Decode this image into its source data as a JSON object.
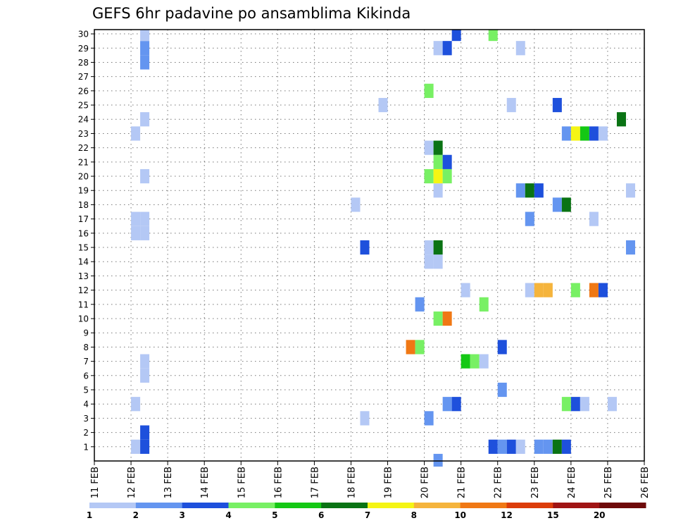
{
  "chart_data": {
    "type": "heatmap",
    "title": "GEFS 6hr padavine po ansamblima Kikinda",
    "xlabel": "",
    "ylabel": "",
    "x_ticks": [
      "11 FEB",
      "12 FEB",
      "13 FEB",
      "14 FEB",
      "15 FEB",
      "16 FEB",
      "17 FEB",
      "18 FEB",
      "19 FEB",
      "20 FEB",
      "21 FEB",
      "22 FEB",
      "23 FEB",
      "24 FEB",
      "25 FEB",
      "26 FEB"
    ],
    "y_ticks": [
      "1",
      "2",
      "3",
      "4",
      "5",
      "6",
      "7",
      "8",
      "9",
      "10",
      "11",
      "12",
      "13",
      "14",
      "15",
      "16",
      "17",
      "18",
      "19",
      "20",
      "21",
      "22",
      "23",
      "24",
      "25",
      "26",
      "27",
      "28",
      "29",
      "30"
    ],
    "xlim": [
      0,
      15
    ],
    "ylim": [
      0,
      30.3
    ],
    "grid": true,
    "legend": {
      "placement": "bottom",
      "labels": [
        "1",
        "2",
        "3",
        "4",
        "5",
        "6",
        "7",
        "8",
        "10",
        "12",
        "15",
        "20"
      ],
      "colors": [
        "#b4c8f5",
        "#6495f0",
        "#1e50dc",
        "#78f064",
        "#14c814",
        "#0a7314",
        "#f5f514",
        "#f5b43c",
        "#f07814",
        "#dc3c0a",
        "#a01414",
        "#6e0a0a"
      ]
    },
    "cell_width_days": 0.25,
    "cell_height_members": 1,
    "value_colors": {
      "1.5": "#b4c8f5",
      "2.5": "#6495f0",
      "3.5": "#1e50dc",
      "4.5": "#78f064",
      "5.5": "#14c814",
      "6.5": "#0a7314",
      "7.5": "#f5f514",
      "9": "#f5b43c",
      "11": "#f07814"
    },
    "cells": [
      {
        "x": 1.0,
        "y": 1,
        "value": 1.5
      },
      {
        "x": 1.0,
        "y": 4,
        "value": 1.5
      },
      {
        "x": 1.0,
        "y": 16,
        "value": 1.5
      },
      {
        "x": 1.0,
        "y": 17,
        "value": 1.5
      },
      {
        "x": 1.0,
        "y": 23,
        "value": 1.5
      },
      {
        "x": 1.25,
        "y": 1,
        "value": 3.5
      },
      {
        "x": 1.25,
        "y": 2,
        "value": 3.5
      },
      {
        "x": 1.25,
        "y": 6,
        "value": 1.5
      },
      {
        "x": 1.25,
        "y": 7,
        "value": 1.5
      },
      {
        "x": 1.25,
        "y": 16,
        "value": 1.5
      },
      {
        "x": 1.25,
        "y": 17,
        "value": 1.5
      },
      {
        "x": 1.25,
        "y": 20,
        "value": 1.5
      },
      {
        "x": 1.25,
        "y": 24,
        "value": 1.5
      },
      {
        "x": 1.25,
        "y": 28,
        "value": 2.5
      },
      {
        "x": 1.25,
        "y": 29,
        "value": 2.5
      },
      {
        "x": 1.25,
        "y": 30,
        "value": 1.5
      },
      {
        "x": 7.0,
        "y": 18,
        "value": 1.5
      },
      {
        "x": 7.25,
        "y": 3,
        "value": 1.5
      },
      {
        "x": 7.25,
        "y": 15,
        "value": 3.5
      },
      {
        "x": 7.75,
        "y": 25,
        "value": 1.5
      },
      {
        "x": 8.5,
        "y": 8,
        "value": 11
      },
      {
        "x": 8.75,
        "y": 8,
        "value": 4.5
      },
      {
        "x": 8.75,
        "y": 11,
        "value": 2.5
      },
      {
        "x": 9.0,
        "y": 3,
        "value": 2.5
      },
      {
        "x": 9.0,
        "y": 14,
        "value": 1.5
      },
      {
        "x": 9.0,
        "y": 15,
        "value": 1.5
      },
      {
        "x": 9.0,
        "y": 20,
        "value": 4.5
      },
      {
        "x": 9.0,
        "y": 22,
        "value": 1.5
      },
      {
        "x": 9.0,
        "y": 26,
        "value": 4.5
      },
      {
        "x": 9.25,
        "y": 0,
        "value": 2.5
      },
      {
        "x": 9.25,
        "y": 10,
        "value": 4.5
      },
      {
        "x": 9.25,
        "y": 14,
        "value": 1.5
      },
      {
        "x": 9.25,
        "y": 15,
        "value": 6.5
      },
      {
        "x": 9.25,
        "y": 19,
        "value": 1.5
      },
      {
        "x": 9.25,
        "y": 20,
        "value": 7.5
      },
      {
        "x": 9.25,
        "y": 21,
        "value": 4.5
      },
      {
        "x": 9.25,
        "y": 22,
        "value": 6.5
      },
      {
        "x": 9.25,
        "y": 29,
        "value": 1.5
      },
      {
        "x": 9.5,
        "y": 4,
        "value": 2.5
      },
      {
        "x": 9.5,
        "y": 10,
        "value": 11
      },
      {
        "x": 9.5,
        "y": 20,
        "value": 4.5
      },
      {
        "x": 9.5,
        "y": 21,
        "value": 3.5
      },
      {
        "x": 9.5,
        "y": 29,
        "value": 3.5
      },
      {
        "x": 9.75,
        "y": 4,
        "value": 3.5
      },
      {
        "x": 9.75,
        "y": 30,
        "value": 3.5
      },
      {
        "x": 10.0,
        "y": 7,
        "value": 5.5
      },
      {
        "x": 10.0,
        "y": 12,
        "value": 1.5
      },
      {
        "x": 10.25,
        "y": 7,
        "value": 4.5
      },
      {
        "x": 10.5,
        "y": 7,
        "value": 1.5
      },
      {
        "x": 10.5,
        "y": 11,
        "value": 4.5
      },
      {
        "x": 10.75,
        "y": 1,
        "value": 3.5
      },
      {
        "x": 10.75,
        "y": 30,
        "value": 4.5
      },
      {
        "x": 11.0,
        "y": 1,
        "value": 2.5
      },
      {
        "x": 11.0,
        "y": 5,
        "value": 2.5
      },
      {
        "x": 11.0,
        "y": 8,
        "value": 3.5
      },
      {
        "x": 11.25,
        "y": 1,
        "value": 3.5
      },
      {
        "x": 11.25,
        "y": 25,
        "value": 1.5
      },
      {
        "x": 11.5,
        "y": 1,
        "value": 1.5
      },
      {
        "x": 11.5,
        "y": 19,
        "value": 2.5
      },
      {
        "x": 11.5,
        "y": 29,
        "value": 1.5
      },
      {
        "x": 11.75,
        "y": 12,
        "value": 1.5
      },
      {
        "x": 11.75,
        "y": 17,
        "value": 2.5
      },
      {
        "x": 11.75,
        "y": 19,
        "value": 6.5
      },
      {
        "x": 12.0,
        "y": 1,
        "value": 2.5
      },
      {
        "x": 12.0,
        "y": 12,
        "value": 9
      },
      {
        "x": 12.0,
        "y": 19,
        "value": 3.5
      },
      {
        "x": 12.25,
        "y": 1,
        "value": 2.5
      },
      {
        "x": 12.25,
        "y": 12,
        "value": 9
      },
      {
        "x": 12.5,
        "y": 1,
        "value": 6.5
      },
      {
        "x": 12.5,
        "y": 18,
        "value": 2.5
      },
      {
        "x": 12.5,
        "y": 25,
        "value": 3.5
      },
      {
        "x": 12.75,
        "y": 1,
        "value": 3.5
      },
      {
        "x": 12.75,
        "y": 4,
        "value": 4.5
      },
      {
        "x": 12.75,
        "y": 18,
        "value": 6.5
      },
      {
        "x": 12.75,
        "y": 23,
        "value": 2.5
      },
      {
        "x": 13.0,
        "y": 4,
        "value": 3.5
      },
      {
        "x": 13.0,
        "y": 12,
        "value": 4.5
      },
      {
        "x": 13.0,
        "y": 23,
        "value": 7.5
      },
      {
        "x": 13.25,
        "y": 4,
        "value": 1.5
      },
      {
        "x": 13.25,
        "y": 23,
        "value": 5.5
      },
      {
        "x": 13.5,
        "y": 12,
        "value": 11
      },
      {
        "x": 13.5,
        "y": 17,
        "value": 1.5
      },
      {
        "x": 13.5,
        "y": 23,
        "value": 3.5
      },
      {
        "x": 13.75,
        "y": 12,
        "value": 3.5
      },
      {
        "x": 13.75,
        "y": 23,
        "value": 1.5
      },
      {
        "x": 14.0,
        "y": 4,
        "value": 1.5
      },
      {
        "x": 14.25,
        "y": 24,
        "value": 6.5
      },
      {
        "x": 14.5,
        "y": 15,
        "value": 2.5
      },
      {
        "x": 14.5,
        "y": 19,
        "value": 1.5
      }
    ]
  }
}
